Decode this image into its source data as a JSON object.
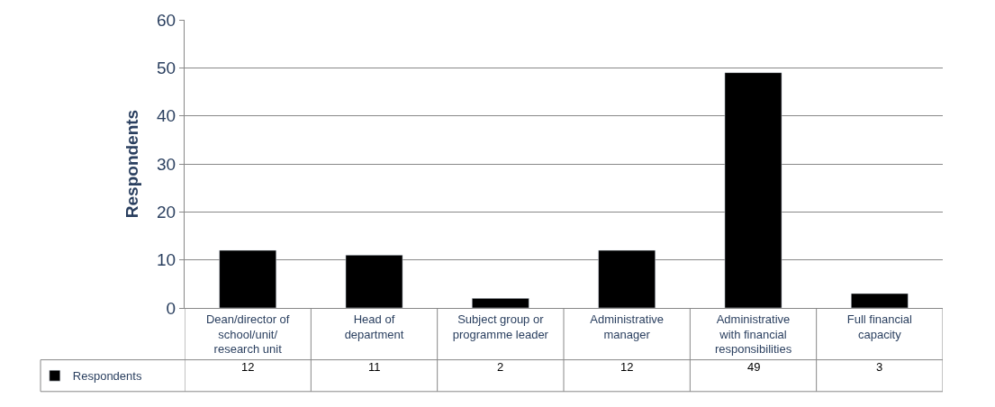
{
  "chart_data": {
    "type": "bar",
    "ylabel": "Respondents",
    "categories": [
      "Dean/director of school/unit/ research unit",
      "Head of department",
      "Subject group or programme leader",
      "Administrative manager",
      "Administrative with financial responsibilities",
      "Full financial capacity"
    ],
    "series": [
      {
        "name": "Respondents",
        "color": "#000000",
        "values": [
          12,
          11,
          2,
          12,
          49,
          3
        ]
      }
    ],
    "ylim": [
      0,
      60
    ],
    "yticks": [
      0,
      10,
      20,
      30,
      40,
      50,
      60
    ],
    "grid": "y",
    "legend": "bottom left",
    "data_labels": true
  }
}
